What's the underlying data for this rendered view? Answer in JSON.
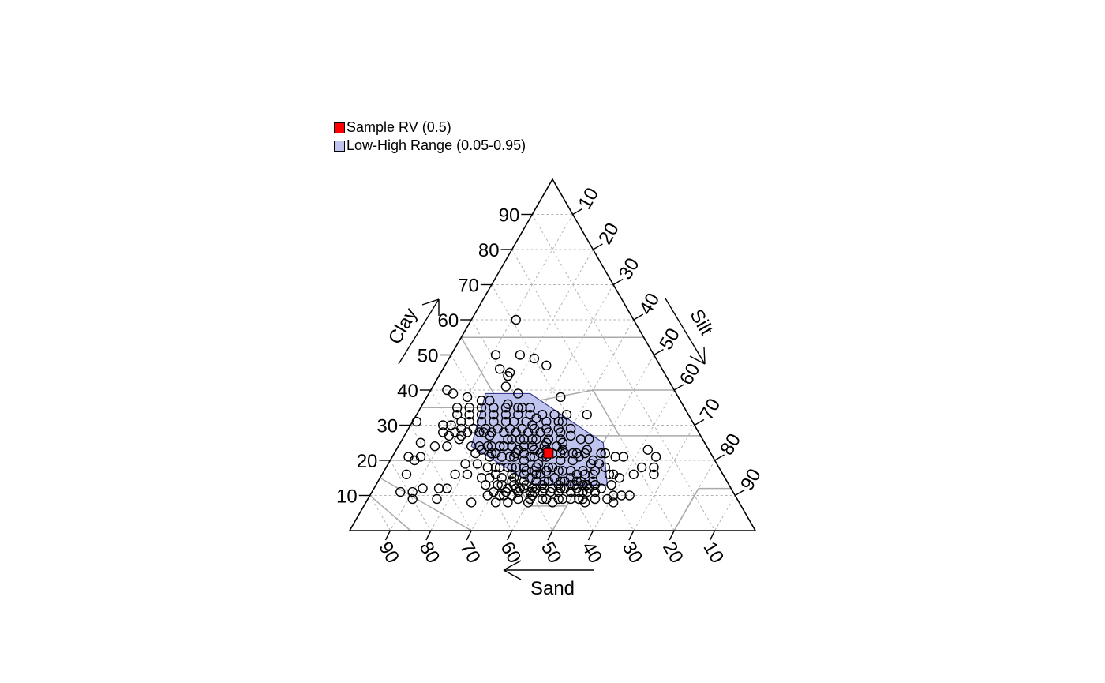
{
  "chart_data": {
    "type": "scatter",
    "subtype": "ternary-soil-texture",
    "title": "",
    "axes": {
      "clay": {
        "label": "Clay",
        "ticks": [
          10,
          20,
          30,
          40,
          50,
          60,
          70,
          80,
          90
        ]
      },
      "silt": {
        "label": "Silt",
        "ticks": [
          10,
          20,
          30,
          40,
          50,
          60,
          70,
          80,
          90
        ]
      },
      "sand": {
        "label": "Sand",
        "ticks": [
          90,
          80,
          70,
          60,
          50,
          40,
          30,
          20,
          10
        ]
      }
    },
    "grid": true,
    "legend_position": "top-left",
    "legend": [
      {
        "label": "Sample RV (0.5)",
        "color": "#ff0000"
      },
      {
        "label": "Low-High Range (0.05-0.95)",
        "color": "#bfc4ef"
      }
    ],
    "colors": {
      "rv_fill": "#ff0000",
      "range_fill": "#bfc4ef",
      "range_stroke": "#3a3a8c",
      "grid": "#b3b3b3",
      "texture_lines": "#aaaaaa",
      "points": "#000000"
    },
    "rv": {
      "sand": 40,
      "silt": 38,
      "clay": 22
    },
    "range": [
      {
        "sand": 47,
        "silt": 14,
        "clay": 39
      },
      {
        "sand": 36,
        "silt": 25,
        "clay": 39
      },
      {
        "sand": 25,
        "silt": 50,
        "clay": 25
      },
      {
        "sand": 30,
        "silt": 57,
        "clay": 13
      },
      {
        "sand": 48,
        "silt": 39,
        "clay": 13
      },
      {
        "sand": 58,
        "silt": 18,
        "clay": 24
      }
    ],
    "points": [
      [
        29,
        11,
        60
      ],
      [
        39,
        11,
        50
      ],
      [
        33,
        17,
        50
      ],
      [
        30,
        21,
        49
      ],
      [
        28,
        25,
        47
      ],
      [
        40,
        14,
        46
      ],
      [
        38,
        17,
        45
      ],
      [
        39,
        17,
        44
      ],
      [
        41,
        18,
        41
      ],
      [
        39,
        22,
        39
      ],
      [
        56,
        4,
        40
      ],
      [
        52,
        10,
        38
      ],
      [
        55,
        6,
        39
      ],
      [
        49,
        14,
        37
      ],
      [
        47,
        16,
        37
      ],
      [
        43,
        21,
        36
      ],
      [
        40,
        25,
        35
      ],
      [
        29,
        33,
        38
      ],
      [
        30,
        37,
        33
      ],
      [
        25,
        42,
        33
      ],
      [
        38,
        30,
        32
      ],
      [
        32,
        37,
        31
      ],
      [
        40,
        30,
        30
      ],
      [
        68,
        1,
        31
      ],
      [
        62,
        8,
        30
      ],
      [
        63,
        9,
        28
      ],
      [
        59,
        14,
        27
      ],
      [
        62,
        11,
        27
      ],
      [
        60,
        14,
        26
      ],
      [
        53,
        19,
        28
      ],
      [
        52,
        21,
        27
      ],
      [
        48,
        26,
        26
      ],
      [
        45,
        29,
        26
      ],
      [
        42,
        32,
        26
      ],
      [
        39,
        36,
        25
      ],
      [
        35,
        40,
        25
      ],
      [
        58,
        18,
        24
      ],
      [
        56,
        21,
        23
      ],
      [
        50,
        26,
        24
      ],
      [
        47,
        30,
        23
      ],
      [
        43,
        34,
        23
      ],
      [
        40,
        37,
        23
      ],
      [
        36,
        41,
        23
      ],
      [
        33,
        45,
        22
      ],
      [
        30,
        47,
        23
      ],
      [
        26,
        52,
        22
      ],
      [
        53,
        25,
        22
      ],
      [
        49,
        30,
        21
      ],
      [
        45,
        34,
        21
      ],
      [
        42,
        37,
        21
      ],
      [
        38,
        42,
        20
      ],
      [
        35,
        45,
        20
      ],
      [
        31,
        50,
        19
      ],
      [
        57,
        25,
        18
      ],
      [
        54,
        28,
        18
      ],
      [
        50,
        32,
        18
      ],
      [
        46,
        37,
        17
      ],
      [
        43,
        40,
        17
      ],
      [
        39,
        44,
        17
      ],
      [
        36,
        48,
        16
      ],
      [
        32,
        52,
        16
      ],
      [
        28,
        56,
        16
      ],
      [
        60,
        25,
        15
      ],
      [
        56,
        28,
        16
      ],
      [
        52,
        33,
        15
      ],
      [
        48,
        37,
        15
      ],
      [
        45,
        41,
        14
      ],
      [
        41,
        45,
        14
      ],
      [
        37,
        49,
        14
      ],
      [
        33,
        54,
        13
      ],
      [
        29,
        58,
        13
      ],
      [
        55,
        33,
        12
      ],
      [
        51,
        37,
        12
      ],
      [
        46,
        42,
        12
      ],
      [
        42,
        46,
        12
      ],
      [
        38,
        51,
        11
      ],
      [
        34,
        55,
        11
      ],
      [
        30,
        60,
        10
      ],
      [
        26,
        64,
        10
      ],
      [
        22,
        62,
        16
      ],
      [
        19,
        63,
        18
      ],
      [
        17,
        67,
        16
      ],
      [
        16,
        66,
        18
      ],
      [
        14,
        65,
        21
      ],
      [
        15,
        62,
        23
      ],
      [
        22,
        57,
        21
      ],
      [
        24,
        55,
        21
      ],
      [
        60,
        10,
        30
      ],
      [
        57,
        12,
        31
      ],
      [
        55,
        14,
        31
      ],
      [
        52,
        17,
        31
      ],
      [
        49,
        20,
        31
      ],
      [
        46,
        23,
        31
      ],
      [
        44,
        25,
        31
      ],
      [
        41,
        28,
        31
      ],
      [
        36,
        33,
        31
      ],
      [
        33,
        36,
        31
      ],
      [
        58,
        20,
        22
      ],
      [
        54,
        24,
        22
      ],
      [
        47,
        33,
        20
      ],
      [
        44,
        37,
        19
      ],
      [
        41,
        41,
        18
      ],
      [
        37,
        46,
        17
      ],
      [
        34,
        50,
        16
      ],
      [
        62,
        19,
        19
      ],
      [
        59,
        22,
        19
      ],
      [
        55,
        27,
        18
      ],
      [
        52,
        30,
        18
      ],
      [
        48,
        35,
        17
      ],
      [
        45,
        39,
        16
      ],
      [
        42,
        43,
        15
      ],
      [
        38,
        47,
        15
      ],
      [
        35,
        52,
        13
      ],
      [
        53,
        35,
        12
      ],
      [
        49,
        40,
        11
      ],
      [
        45,
        44,
        11
      ],
      [
        40,
        49,
        11
      ],
      [
        36,
        53,
        11
      ],
      [
        57,
        33,
        10
      ],
      [
        50,
        40,
        10
      ],
      [
        47,
        44,
        9
      ],
      [
        43,
        48,
        9
      ],
      [
        39,
        52,
        9
      ],
      [
        35,
        56,
        9
      ],
      [
        31,
        61,
        8
      ],
      [
        28,
        62,
        10
      ],
      [
        61,
        29,
        10
      ],
      [
        56,
        33,
        11
      ],
      [
        63,
        21,
        16
      ],
      [
        66,
        18,
        16
      ],
      [
        70,
        18,
        12
      ],
      [
        72,
        16,
        12
      ],
      [
        74,
        17,
        9
      ],
      [
        66,
        26,
        8
      ],
      [
        60,
        32,
        8
      ],
      [
        52,
        40,
        8
      ],
      [
        46,
        46,
        8
      ],
      [
        38,
        54,
        8
      ],
      [
        32,
        59,
        9
      ],
      [
        64,
        12,
        24
      ],
      [
        67,
        9,
        24
      ],
      [
        70,
        5,
        25
      ],
      [
        72,
        7,
        21
      ],
      [
        74,
        6,
        20
      ],
      [
        75,
        4,
        21
      ],
      [
        78,
        6,
        16
      ],
      [
        76,
        12,
        12
      ],
      [
        79,
        10,
        11
      ],
      [
        82,
        7,
        11
      ],
      [
        80,
        11,
        9
      ],
      [
        36,
        42,
        22
      ],
      [
        37,
        41,
        22
      ],
      [
        41,
        38,
        21
      ],
      [
        44,
        35,
        21
      ],
      [
        50,
        29,
        21
      ],
      [
        52,
        27,
        21
      ],
      [
        55,
        24,
        21
      ],
      [
        46,
        32,
        22
      ],
      [
        48,
        30,
        22
      ],
      [
        34,
        44,
        22
      ],
      [
        39,
        39,
        22
      ],
      [
        42,
        36,
        22
      ],
      [
        43,
        33,
        24
      ],
      [
        40,
        36,
        24
      ],
      [
        37,
        39,
        24
      ],
      [
        48,
        28,
        24
      ],
      [
        51,
        25,
        24
      ],
      [
        54,
        22,
        24
      ],
      [
        45,
        31,
        24
      ],
      [
        47,
        27,
        26
      ],
      [
        44,
        30,
        26
      ],
      [
        41,
        33,
        26
      ],
      [
        38,
        36,
        26
      ],
      [
        35,
        39,
        26
      ],
      [
        50,
        26,
        24
      ],
      [
        53,
        23,
        24
      ],
      [
        56,
        20,
        24
      ],
      [
        42,
        40,
        18
      ],
      [
        45,
        37,
        18
      ],
      [
        48,
        34,
        18
      ],
      [
        51,
        31,
        18
      ],
      [
        54,
        28,
        18
      ],
      [
        40,
        43,
        17
      ],
      [
        43,
        40,
        17
      ],
      [
        46,
        38,
        16
      ],
      [
        49,
        35,
        16
      ],
      [
        52,
        32,
        16
      ],
      [
        37,
        46,
        17
      ],
      [
        34,
        49,
        17
      ],
      [
        31,
        52,
        17
      ],
      [
        55,
        30,
        15
      ],
      [
        58,
        27,
        15
      ],
      [
        40,
        46,
        14
      ],
      [
        44,
        42,
        14
      ],
      [
        47,
        39,
        14
      ],
      [
        50,
        36,
        14
      ],
      [
        53,
        33,
        14
      ],
      [
        36,
        50,
        14
      ],
      [
        33,
        53,
        14
      ],
      [
        57,
        30,
        13
      ],
      [
        60,
        27,
        13
      ],
      [
        42,
        46,
        12
      ],
      [
        46,
        42,
        12
      ],
      [
        49,
        39,
        12
      ],
      [
        52,
        36,
        12
      ],
      [
        38,
        50,
        12
      ],
      [
        35,
        53,
        12
      ],
      [
        32,
        56,
        12
      ],
      [
        56,
        33,
        11
      ],
      [
        59,
        30,
        11
      ],
      [
        43,
        46,
        11
      ],
      [
        47,
        42,
        11
      ],
      [
        50,
        39,
        11
      ],
      [
        53,
        36,
        11
      ],
      [
        40,
        49,
        11
      ],
      [
        37,
        52,
        11
      ],
      [
        55,
        35,
        10
      ],
      [
        58,
        32,
        10
      ],
      [
        44,
        47,
        9
      ],
      [
        48,
        43,
        9
      ],
      [
        51,
        40,
        9
      ],
      [
        54,
        37,
        9
      ],
      [
        41,
        50,
        9
      ],
      [
        38,
        53,
        9
      ],
      [
        35,
        56,
        9
      ],
      [
        57,
        35,
        8
      ],
      [
        30,
        44,
        26
      ],
      [
        28,
        46,
        26
      ],
      [
        32,
        41,
        27
      ],
      [
        34,
        38,
        28
      ],
      [
        37,
        35,
        28
      ],
      [
        39,
        33,
        28
      ],
      [
        42,
        30,
        28
      ],
      [
        45,
        27,
        28
      ],
      [
        48,
        24,
        28
      ],
      [
        51,
        21,
        28
      ],
      [
        54,
        18,
        28
      ],
      [
        57,
        15,
        28
      ],
      [
        60,
        12,
        28
      ],
      [
        31,
        40,
        29
      ],
      [
        34,
        37,
        29
      ],
      [
        37,
        34,
        29
      ],
      [
        40,
        31,
        29
      ],
      [
        43,
        28,
        29
      ],
      [
        46,
        25,
        29
      ],
      [
        49,
        22,
        29
      ],
      [
        52,
        19,
        29
      ],
      [
        55,
        16,
        29
      ],
      [
        58,
        13,
        29
      ],
      [
        33,
        34,
        33
      ],
      [
        36,
        31,
        33
      ],
      [
        39,
        28,
        33
      ],
      [
        42,
        25,
        33
      ],
      [
        45,
        22,
        33
      ],
      [
        48,
        19,
        33
      ],
      [
        51,
        16,
        33
      ],
      [
        54,
        13,
        33
      ],
      [
        57,
        10,
        33
      ],
      [
        38,
        27,
        35
      ],
      [
        41,
        24,
        35
      ],
      [
        44,
        21,
        35
      ],
      [
        47,
        18,
        35
      ],
      [
        50,
        15,
        35
      ],
      [
        53,
        12,
        35
      ],
      [
        56,
        9,
        35
      ],
      [
        28,
        54,
        18
      ],
      [
        27,
        57,
        16
      ],
      [
        26,
        59,
        15
      ],
      [
        30,
        50,
        20
      ],
      [
        29,
        52,
        19
      ],
      [
        27,
        51,
        22
      ],
      [
        31,
        47,
        22
      ],
      [
        33,
        46,
        21
      ],
      [
        42,
        45,
        13
      ],
      [
        46,
        41,
        13
      ],
      [
        50,
        37,
        13
      ],
      [
        53,
        34,
        13
      ],
      [
        39,
        48,
        13
      ],
      [
        36,
        51,
        13
      ],
      [
        33,
        54,
        13
      ],
      [
        56,
        31,
        13
      ],
      [
        44,
        44,
        12
      ],
      [
        48,
        40,
        12
      ],
      [
        41,
        47,
        12
      ],
      [
        38,
        49,
        13
      ],
      [
        35,
        52,
        13
      ]
    ],
    "texture_class_boundaries": [
      [
        [
          45,
          0,
          55
        ],
        [
          65,
          0,
          35
        ]
      ],
      [
        [
          45,
          15,
          40
        ],
        [
          45,
          0,
          55
        ]
      ],
      [
        [
          65,
          0,
          35
        ],
        [
          45,
          20,
          35
        ]
      ],
      [
        [
          45,
          20,
          35
        ],
        [
          45,
          15,
          40
        ]
      ],
      [
        [
          45,
          20,
          35
        ],
        [
          20,
          40,
          40
        ]
      ],
      [
        [
          20,
          40,
          40
        ],
        [
          0,
          60,
          40
        ]
      ],
      [
        [
          20,
          40,
          40
        ],
        [
          20,
          53,
          27
        ]
      ],
      [
        [
          20,
          53,
          27
        ],
        [
          0,
          73,
          27
        ]
      ],
      [
        [
          45,
          28,
          27
        ],
        [
          20,
          53,
          27
        ]
      ],
      [
        [
          45,
          28,
          27
        ],
        [
          45,
          20,
          35
        ]
      ],
      [
        [
          52,
          28,
          20
        ],
        [
          45,
          28,
          27
        ]
      ],
      [
        [
          80,
          0,
          20
        ],
        [
          52,
          28,
          20
        ]
      ],
      [
        [
          52,
          28,
          20
        ],
        [
          52,
          41,
          7
        ]
      ],
      [
        [
          52,
          41,
          7
        ],
        [
          43,
          50,
          7
        ]
      ],
      [
        [
          43,
          50,
          7
        ],
        [
          23,
          50,
          27
        ]
      ],
      [
        [
          43,
          50,
          7
        ],
        [
          50,
          50,
          0
        ]
      ],
      [
        [
          50,
          50,
          0
        ],
        [
          20,
          80,
          0
        ]
      ],
      [
        [
          20,
          80,
          0
        ],
        [
          8,
          80,
          12
        ]
      ],
      [
        [
          8,
          80,
          12
        ],
        [
          0,
          88,
          12
        ]
      ],
      [
        [
          8,
          80,
          12
        ],
        [
          20,
          80,
          0
        ]
      ],
      [
        [
          85,
          0,
          15
        ],
        [
          70,
          30,
          0
        ]
      ],
      [
        [
          90,
          0,
          10
        ],
        [
          85,
          15,
          0
        ]
      ],
      [
        [
          45,
          0,
          55
        ],
        [
          0,
          45,
          55
        ]
      ]
    ]
  }
}
